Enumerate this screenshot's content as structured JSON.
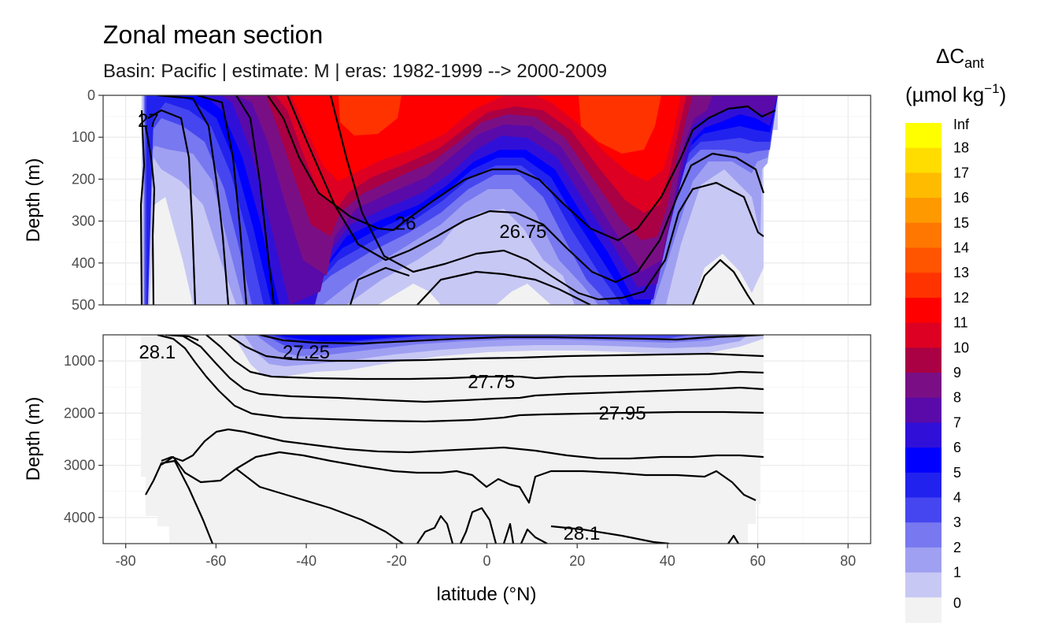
{
  "chart_data": {
    "type": "contour",
    "title": "Zonal mean section",
    "subtitle": "Basin: Pacific | estimate: M  | eras: 1982-1999 --> 2000-2009",
    "xlabel": "latitude (°N)",
    "ylabel": "Depth (m)",
    "xlim": [
      -85,
      85
    ],
    "x_ticks": [
      -80,
      -60,
      -40,
      -20,
      0,
      20,
      40,
      60,
      80
    ],
    "x_tick_labels": [
      "-80",
      "-60",
      "-40",
      "-20",
      "0",
      "20",
      "40",
      "60",
      "80"
    ],
    "panels": [
      {
        "name": "upper",
        "ylim": [
          0,
          500
        ],
        "y_ticks": [
          0,
          100,
          200,
          300,
          400,
          500
        ],
        "y_tick_labels": [
          "0",
          "100",
          "200",
          "300",
          "400",
          "500"
        ]
      },
      {
        "name": "lower",
        "ylim": [
          500,
          4500
        ],
        "y_ticks": [
          1000,
          2000,
          3000,
          4000
        ],
        "y_tick_labels": [
          "1000",
          "2000",
          "3000",
          "4000"
        ]
      }
    ],
    "contour_labels": [
      {
        "text": "27",
        "panel": "upper",
        "lat": -75,
        "depth": 60
      },
      {
        "text": "26",
        "panel": "upper",
        "lat": -18,
        "depth": 305
      },
      {
        "text": "26.75",
        "panel": "upper",
        "lat": 8,
        "depth": 325
      },
      {
        "text": "28.1",
        "panel": "lower",
        "lat": -73,
        "depth": 830
      },
      {
        "text": "27.25",
        "panel": "lower",
        "lat": -40,
        "depth": 830
      },
      {
        "text": "27.75",
        "panel": "lower",
        "lat": 1,
        "depth": 1400
      },
      {
        "text": "27.95",
        "panel": "lower",
        "lat": 30,
        "depth": 2000
      },
      {
        "text": "28.1",
        "panel": "lower",
        "lat": 21,
        "depth": 4300
      }
    ],
    "legend": {
      "title_main": "ΔC",
      "title_sub": "ant",
      "units_pre": "(µmol kg",
      "units_sup": "−1",
      "units_post": ")",
      "labels": [
        "Inf",
        "18",
        "17",
        "16",
        "15",
        "14",
        "13",
        "12",
        "11",
        "10",
        "9",
        "8",
        "7",
        "6",
        "5",
        "4",
        "3",
        "2",
        "1",
        "0"
      ],
      "colors": [
        "#ffff00",
        "#ffdd00",
        "#ffbb00",
        "#ff9900",
        "#ff7700",
        "#ff5500",
        "#ff3300",
        "#ff0000",
        "#dd0022",
        "#aa0044",
        "#7a0f85",
        "#5a0aa8",
        "#3010d8",
        "#0000ff",
        "#2222ee",
        "#4646f0",
        "#7878f0",
        "#a0a0f2",
        "#c8c8f5",
        "#f2f2f2"
      ]
    }
  }
}
